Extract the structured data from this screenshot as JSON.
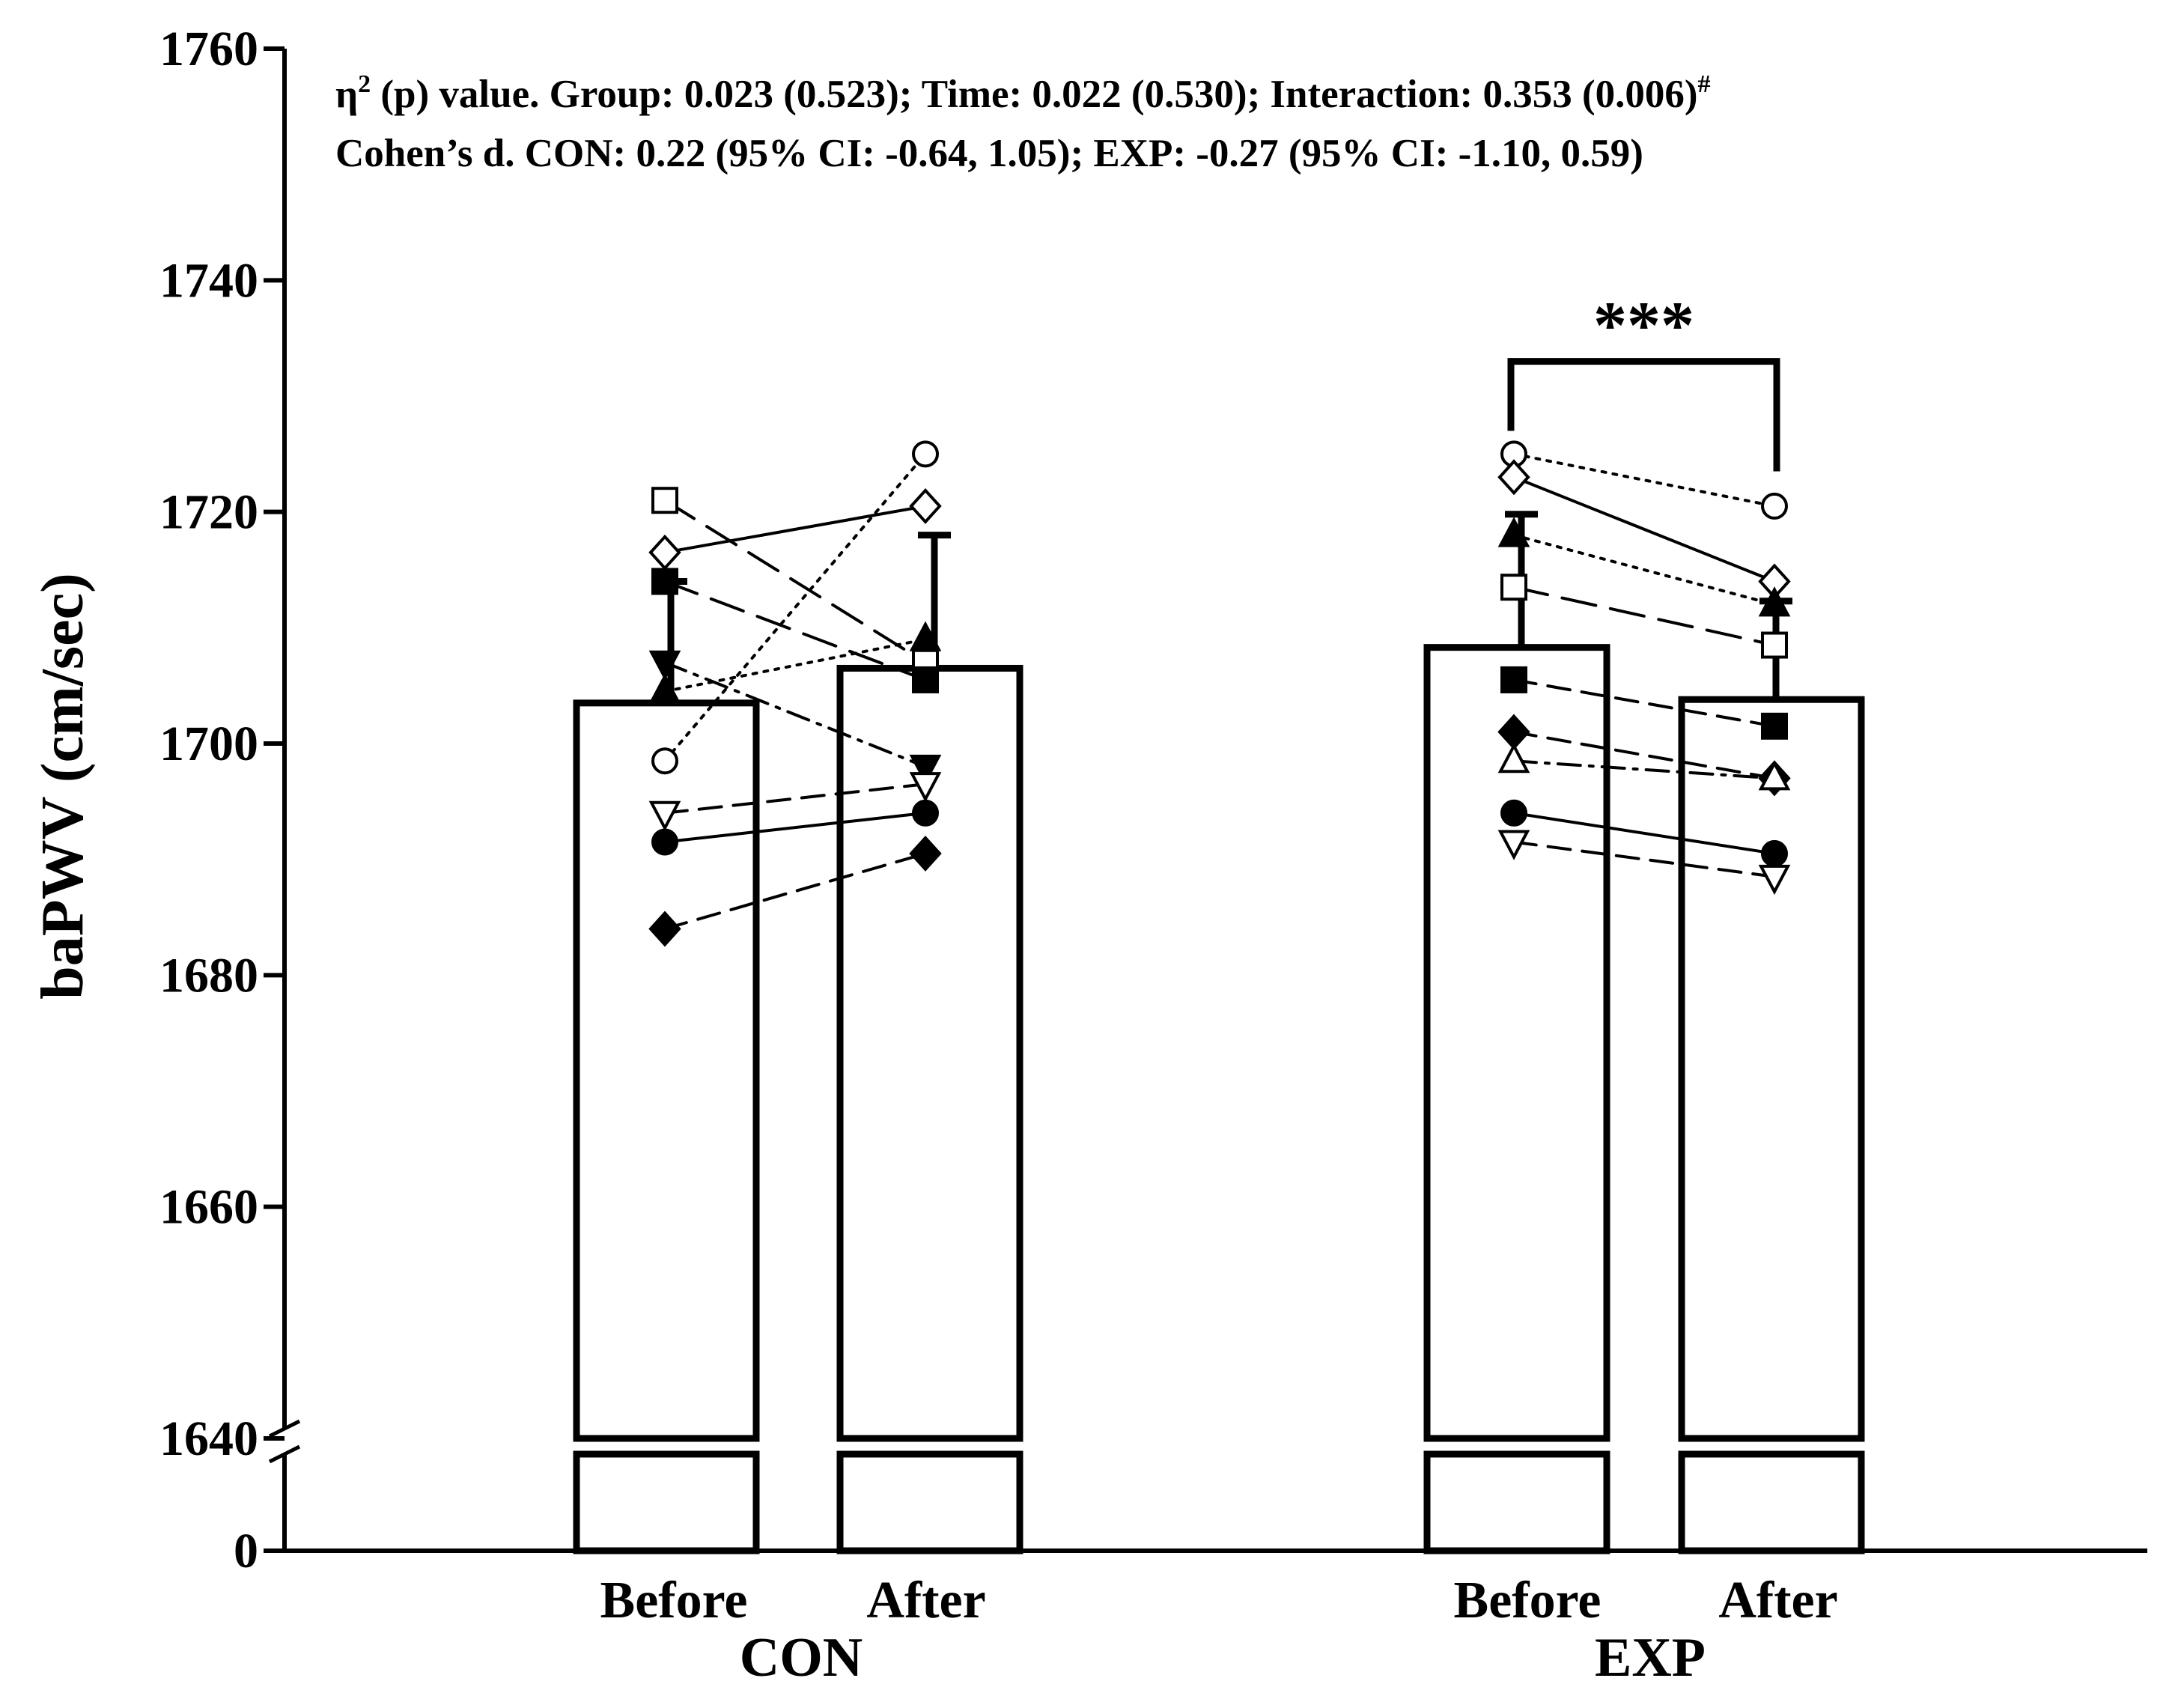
{
  "chart_data": {
    "type": "bar",
    "title": "",
    "ylabel": "baPWV (cm/sec)",
    "xlabel": "",
    "axis_break": true,
    "ylim": [
      1640,
      1760
    ],
    "yticks": [
      "0",
      "1640",
      "1660",
      "1680",
      "1700",
      "1720",
      "1740",
      "1760"
    ],
    "yticks_upper": [
      1640,
      1660,
      1680,
      1700,
      1720,
      1740,
      1760
    ],
    "groups": [
      {
        "name": "CON",
        "conditions": [
          "Before",
          "After"
        ]
      },
      {
        "name": "EXP",
        "conditions": [
          "Before",
          "After"
        ]
      }
    ],
    "bars": [
      {
        "group": "CON",
        "condition": "Before",
        "mean": 1703.5,
        "sd": 10.5
      },
      {
        "group": "CON",
        "condition": "After",
        "mean": 1706.5,
        "sd": 11.5
      },
      {
        "group": "EXP",
        "condition": "Before",
        "mean": 1708.3,
        "sd": 11.5
      },
      {
        "group": "EXP",
        "condition": "After",
        "mean": 1703.8,
        "sd": 8.5
      }
    ],
    "subjects": [
      {
        "group": "CON",
        "marker": "open-square",
        "dash": "long-dash",
        "before": 1721,
        "after": 1707
      },
      {
        "group": "CON",
        "marker": "open-diamond",
        "dash": "solid",
        "before": 1716.5,
        "after": 1720.5
      },
      {
        "group": "CON",
        "marker": "filled-square",
        "dash": "long-dash",
        "before": 1714,
        "after": 1705.5
      },
      {
        "group": "CON",
        "marker": "filled-triangle-down",
        "dash": "dash-dot",
        "before": 1707,
        "after": 1698
      },
      {
        "group": "CON",
        "marker": "filled-triangle-up",
        "dash": "dotted",
        "before": 1704.5,
        "after": 1709
      },
      {
        "group": "CON",
        "marker": "open-circle",
        "dash": "dotted",
        "before": 1698.5,
        "after": 1725
      },
      {
        "group": "CON",
        "marker": "open-triangle-down",
        "dash": "dash",
        "before": 1694,
        "after": 1696.5
      },
      {
        "group": "CON",
        "marker": "filled-circle",
        "dash": "solid",
        "before": 1691.5,
        "after": 1694
      },
      {
        "group": "CON",
        "marker": "filled-diamond",
        "dash": "dash",
        "before": 1684,
        "after": 1690.5
      },
      {
        "group": "EXP",
        "marker": "open-circle",
        "dash": "dotted",
        "before": 1725,
        "after": 1720.5
      },
      {
        "group": "EXP",
        "marker": "open-diamond",
        "dash": "solid",
        "before": 1723,
        "after": 1714
      },
      {
        "group": "EXP",
        "marker": "filled-triangle-up",
        "dash": "dotted",
        "before": 1718,
        "after": 1712
      },
      {
        "group": "EXP",
        "marker": "open-square",
        "dash": "long-dash",
        "before": 1713.5,
        "after": 1708.5
      },
      {
        "group": "EXP",
        "marker": "filled-square",
        "dash": "dash",
        "before": 1705.5,
        "after": 1701.5
      },
      {
        "group": "EXP",
        "marker": "filled-diamond",
        "dash": "dash",
        "before": 1701,
        "after": 1697
      },
      {
        "group": "EXP",
        "marker": "open-triangle-up",
        "dash": "dash-dot",
        "before": 1698.5,
        "after": 1697
      },
      {
        "group": "EXP",
        "marker": "filled-circle",
        "dash": "solid",
        "before": 1694,
        "after": 1690.5
      },
      {
        "group": "EXP",
        "marker": "open-triangle-down",
        "dash": "dash",
        "before": 1691.5,
        "after": 1688.5
      }
    ],
    "significance": {
      "group": "EXP",
      "label": "***"
    },
    "annotations": {
      "line1_eta": "η",
      "line1_sup": "2",
      "line1_text": " (p) value. Group: 0.023 (0.523); Time: 0.022 (0.530); Interaction: 0.353 (0.006)",
      "line1_mark": "#",
      "line2_text": "Cohen’s d. CON: 0.22 (95% CI: -0.64, 1.05); EXP: -0.27 (95% CI: -1.10, 0.59)"
    }
  }
}
